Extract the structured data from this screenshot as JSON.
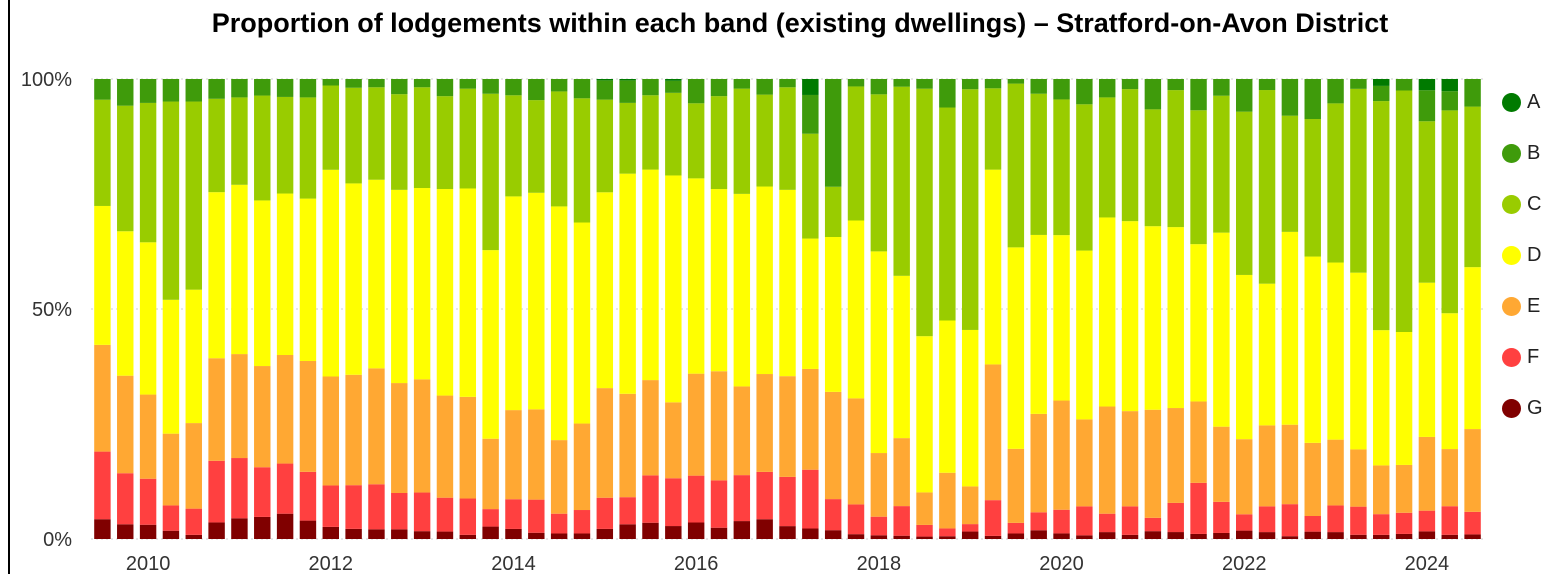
{
  "title": "Proportion of lodgements within each band (existing dwellings) – Stratford-on-Avon District",
  "legend": [
    {
      "label": "A",
      "color": "#007a00"
    },
    {
      "label": "B",
      "color": "#3f9b0b"
    },
    {
      "label": "C",
      "color": "#99cc00"
    },
    {
      "label": "D",
      "color": "#ffff00"
    },
    {
      "label": "E",
      "color": "#ffa833"
    },
    {
      "label": "F",
      "color": "#ff4040"
    },
    {
      "label": "G",
      "color": "#800000"
    }
  ],
  "chart_data": {
    "type": "bar",
    "stacked": true,
    "x_tick_labels": [
      "2010",
      "2012",
      "2014",
      "2016",
      "2018",
      "2020",
      "2022",
      "2024"
    ],
    "y_tick_labels": [
      "100%",
      "50%",
      "0%"
    ],
    "ylim": [
      0,
      100
    ],
    "grid": true,
    "legend_position": "right",
    "series": [
      {
        "name": "G",
        "color": "#800000",
        "values": [
          4.3,
          3.2,
          3.1,
          1.8,
          0.9,
          3.6,
          4.5,
          4.8,
          5.5,
          4.0,
          2.6,
          2.2,
          2.1,
          2.1,
          1.7,
          1.6,
          0.9,
          2.7,
          2.1,
          1.3,
          1.2,
          1.2,
          2.2,
          3.2,
          3.5,
          2.9,
          3.8,
          2.5,
          3.9,
          4.3,
          2.8,
          2.3,
          1.7,
          1.1,
          0.8,
          0.6,
          0.5,
          0.6,
          1.6,
          0.6,
          1.2,
          1.9,
          1.2,
          0.8,
          1.5,
          0.9,
          1.7,
          1.5,
          1.1,
          1.3,
          1.8,
          1.5,
          0.6,
          1.6,
          1.5,
          0.9,
          0.9,
          1.1,
          1.7,
          0.9,
          1.0
        ]
      },
      {
        "name": "F",
        "color": "#ff4040",
        "values": [
          14.7,
          11.1,
          10.0,
          5.5,
          5.7,
          13.4,
          13.1,
          10.8,
          10.9,
          10.6,
          8.9,
          9.5,
          9.8,
          7.9,
          8.4,
          7.3,
          7.9,
          3.8,
          6.2,
          6.9,
          4.3,
          5.1,
          6.8,
          5.9,
          10.2,
          10.7,
          10.8,
          10.5,
          10.0,
          10.3,
          10.7,
          12.9,
          6.0,
          6.8,
          4.0,
          5.4,
          2.4,
          1.7,
          1.6,
          6.9,
          2.3,
          3.9,
          5.1,
          6.3,
          4.0,
          6.2,
          2.9,
          6.3,
          11.1,
          6.7,
          3.5,
          5.6,
          6.9,
          3.4,
          5.8,
          6.0,
          4.5,
          4.6,
          4.6,
          6.1,
          4.9
        ]
      },
      {
        "name": "E",
        "color": "#ffa833",
        "values": [
          23.2,
          21.2,
          18.3,
          15.6,
          18.6,
          22.3,
          22.6,
          22.0,
          23.6,
          24.1,
          23.4,
          24.0,
          25.2,
          23.9,
          24.6,
          22.0,
          22.1,
          15.3,
          18.6,
          18.8,
          16.0,
          18.8,
          23.9,
          22.5,
          20.5,
          17.0,
          23.5,
          24.2,
          19.3,
          21.3,
          21.9,
          22.1,
          20.7,
          24.2,
          13.7,
          12.4,
          6.7,
          12.1,
          8.1,
          26.2,
          16.1,
          21.4,
          23.5,
          18.9,
          23.3,
          20.7,
          23.5,
          20.5,
          17.7,
          16.2,
          16.1,
          17.6,
          17.1,
          15.9,
          14.3,
          12.2,
          10.6,
          10.4,
          16.4,
          12.2,
          18.0
        ]
      },
      {
        "name": "D",
        "color": "#ffff00",
        "values": [
          30.2,
          31.4,
          33.1,
          29.1,
          29.0,
          36.1,
          36.8,
          36.0,
          35.1,
          35.3,
          44.4,
          41.6,
          41.0,
          42.0,
          41.6,
          44.5,
          45.3,
          41.0,
          44.6,
          45.1,
          50.8,
          43.7,
          42.7,
          47.9,
          45.3,
          50.8,
          45.0,
          40.4,
          41.9,
          40.8,
          40.5,
          28.6,
          29.9,
          40.6,
          43.4,
          29.6,
          32.2,
          33.1,
          33.6,
          37.6,
          43.8,
          38.9,
          35.6,
          36.7,
          41.1,
          41.3,
          39.9,
          39.1,
          34.2,
          41.8,
          35.2,
          30.8,
          41.5,
          40.5,
          38.5,
          37.7,
          29.4,
          28.9,
          34.3,
          29.0,
          35.2
        ]
      },
      {
        "name": "C",
        "color": "#99cc00",
        "values": [
          23.1,
          27.3,
          30.3,
          43.1,
          40.9,
          20.3,
          19.0,
          22.8,
          21.0,
          22.0,
          18.1,
          20.8,
          20.1,
          20.8,
          21.9,
          20.0,
          21.7,
          34.0,
          21.1,
          19.3,
          25.0,
          27.0,
          20.2,
          15.4,
          16.0,
          18.5,
          17.3,
          20.6,
          22.9,
          20.0,
          22.3,
          23.0,
          9.7,
          30.6,
          33.8,
          34.5,
          51.0,
          46.3,
          51.7,
          15.7,
          35.6,
          30.7,
          29.2,
          31.8,
          26.1,
          28.7,
          25.4,
          29.6,
          29.1,
          29.5,
          35.0,
          42.1,
          25.0,
          29.9,
          34.6,
          39.2,
          49.8,
          52.5,
          35.9,
          43.3,
          34.9
        ]
      },
      {
        "name": "B",
        "color": "#3f9b0b",
        "values": [
          4.5,
          5.8,
          5.2,
          4.9,
          4.9,
          4.3,
          4.0,
          3.6,
          3.9,
          4.0,
          1.4,
          1.9,
          1.8,
          3.3,
          1.8,
          3.7,
          2.1,
          3.2,
          3.4,
          4.4,
          2.7,
          4.2,
          4.2,
          4.9,
          3.5,
          2.7,
          5.6,
          3.8,
          2.1,
          3.4,
          1.8,
          8.5,
          20.8,
          1.7,
          3.3,
          1.4,
          2.0,
          6.2,
          2.2,
          1.8,
          1.0,
          3.2,
          4.4,
          5.5,
          4.0,
          2.2,
          6.6,
          2.4,
          6.8,
          3.6,
          7.0,
          2.4,
          7.9,
          8.7,
          5.3,
          2.1,
          3.3,
          2.5,
          6.9,
          4.1,
          6.0
        ]
      },
      {
        "name": "A",
        "color": "#007a00",
        "values": [
          0,
          0,
          0,
          0,
          0,
          0,
          0,
          0,
          0,
          0,
          0,
          0,
          0,
          0,
          0,
          0,
          0,
          0,
          0,
          0,
          0,
          0,
          0.3,
          0.3,
          0,
          0.4,
          0,
          0,
          0,
          0,
          0,
          3.5,
          0,
          0,
          0,
          0,
          0,
          0,
          0,
          0,
          0,
          0,
          0,
          0,
          0,
          0,
          0,
          0,
          0,
          0,
          0,
          0,
          0,
          0,
          0,
          0,
          1.5,
          0,
          2.5,
          2.6,
          0
        ]
      }
    ]
  }
}
